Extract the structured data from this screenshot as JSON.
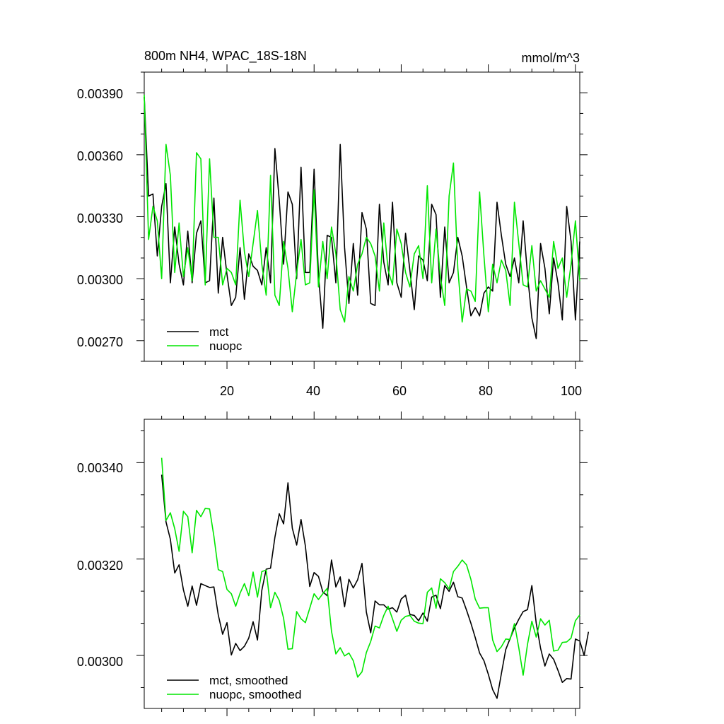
{
  "chart_data": [
    {
      "type": "line",
      "title": "800m NH4, WPAC_18S-18N",
      "units": "mmol/m^3",
      "xlabel": "",
      "ylabel": "",
      "xlim": [
        1,
        101
      ],
      "ylim": [
        0.0026,
        0.004
      ],
      "x_ticks": [
        20,
        40,
        60,
        80,
        100
      ],
      "x_tick_labels": [
        "20",
        "40",
        "60",
        "80",
        "100"
      ],
      "y_ticks": [
        0.0027,
        0.003,
        0.0033,
        0.0036,
        0.0039
      ],
      "y_tick_labels": [
        "0.00270",
        "0.00300",
        "0.00330",
        "0.00360",
        "0.00390"
      ],
      "legend_position": "bottom-left",
      "series": [
        {
          "name": "mct",
          "color": "#000000",
          "values": [
            0.00388,
            0.0034,
            0.00341,
            0.00311,
            0.00335,
            0.00346,
            0.00298,
            0.00325,
            0.00307,
            0.00297,
            0.00323,
            0.00298,
            0.00322,
            0.00328,
            0.00298,
            0.00299,
            0.00339,
            0.00293,
            0.0032,
            0.00302,
            0.00287,
            0.00291,
            0.00315,
            0.0029,
            0.00312,
            0.00306,
            0.00304,
            0.00297,
            0.00315,
            0.00298,
            0.00363,
            0.00338,
            0.00307,
            0.00342,
            0.00336,
            0.003,
            0.00354,
            0.00303,
            0.00303,
            0.00353,
            0.00302,
            0.00276,
            0.00321,
            0.0032,
            0.00298,
            0.00365,
            0.00315,
            0.00288,
            0.00317,
            0.00292,
            0.00332,
            0.00324,
            0.00288,
            0.00287,
            0.00336,
            0.00308,
            0.00297,
            0.00337,
            0.00298,
            0.00291,
            0.00322,
            0.00304,
            0.00285,
            0.00311,
            0.00309,
            0.00299,
            0.00336,
            0.00331,
            0.00291,
            0.00325,
            0.00298,
            0.00303,
            0.0032,
            0.00311,
            0.00296,
            0.00282,
            0.00286,
            0.00282,
            0.00293,
            0.00296,
            0.00294,
            0.00337,
            0.00321,
            0.00307,
            0.00301,
            0.0031,
            0.00298,
            0.00328,
            0.00302,
            0.00281,
            0.00271,
            0.00317,
            0.00305,
            0.00283,
            0.0031,
            0.00298,
            0.0028,
            0.00335,
            0.00318,
            0.0028,
            0.00318
          ]
        },
        {
          "name": "nuopc",
          "color": "#00e600",
          "values": [
            0.00389,
            0.00319,
            0.00335,
            0.00328,
            0.003,
            0.00365,
            0.0035,
            0.00303,
            0.00327,
            0.00301,
            0.00315,
            0.00299,
            0.00361,
            0.00358,
            0.00297,
            0.00358,
            0.0032,
            0.0032,
            0.00297,
            0.00305,
            0.00303,
            0.00297,
            0.00338,
            0.00313,
            0.00301,
            0.00317,
            0.00333,
            0.00307,
            0.00292,
            0.0035,
            0.00292,
            0.00287,
            0.00318,
            0.00305,
            0.00284,
            0.00303,
            0.00319,
            0.00297,
            0.00298,
            0.00343,
            0.00296,
            0.00318,
            0.003,
            0.00325,
            0.00312,
            0.00285,
            0.00279,
            0.00301,
            0.00294,
            0.00307,
            0.00312,
            0.0032,
            0.00317,
            0.00311,
            0.00294,
            0.00327,
            0.00304,
            0.00297,
            0.00324,
            0.00317,
            0.00303,
            0.00296,
            0.00312,
            0.00316,
            0.003,
            0.00345,
            0.00298,
            0.00324,
            0.00301,
            0.00287,
            0.0034,
            0.00356,
            0.00305,
            0.00279,
            0.00295,
            0.00294,
            0.00289,
            0.00342,
            0.00311,
            0.00284,
            0.00307,
            0.00298,
            0.00309,
            0.00304,
            0.00287,
            0.00337,
            0.00317,
            0.00297,
            0.00296,
            0.00316,
            0.00294,
            0.00299,
            0.00295,
            0.00291,
            0.00318,
            0.00305,
            0.0031,
            0.00291,
            0.00307,
            0.00328,
            0.00299
          ]
        }
      ]
    },
    {
      "type": "line",
      "title": "",
      "xlabel": "",
      "ylabel": "",
      "xlim": [
        1,
        101
      ],
      "ylim": [
        0.00289,
        0.00349
      ],
      "x_ticks": [
        20,
        40,
        60,
        80,
        100
      ],
      "y_ticks": [
        0.003,
        0.0032,
        0.0034
      ],
      "y_tick_labels": [
        "0.00300",
        "0.00320",
        "0.00340"
      ],
      "legend_position": "bottom-left",
      "series": [
        {
          "name": "mct, smoothed",
          "color": "#000000",
          "x_start": 5,
          "values": [
            0.003375,
            0.003277,
            0.003241,
            0.003171,
            0.003188,
            0.003136,
            0.003102,
            0.003144,
            0.003104,
            0.003149,
            0.003145,
            0.003141,
            0.003142,
            0.003084,
            0.003044,
            0.003068,
            0.003001,
            0.003025,
            0.00301,
            0.003019,
            0.003036,
            0.00307,
            0.003032,
            0.003135,
            0.003179,
            0.003181,
            0.003245,
            0.003294,
            0.003273,
            0.003358,
            0.003264,
            0.003229,
            0.003282,
            0.003227,
            0.003143,
            0.003172,
            0.003164,
            0.003132,
            0.003124,
            0.003198,
            0.003142,
            0.003163,
            0.003101,
            0.003158,
            0.00314,
            0.003157,
            0.003191,
            0.00309,
            0.003047,
            0.003113,
            0.003105,
            0.003105,
            0.003096,
            0.003099,
            0.00309,
            0.003117,
            0.003125,
            0.003085,
            0.003083,
            0.003072,
            0.003088,
            0.003071,
            0.003121,
            0.003125,
            0.003097,
            0.003145,
            0.003133,
            0.003152,
            0.003122,
            0.003119,
            0.003094,
            0.003067,
            0.003037,
            0.003005,
            0.002989,
            0.002961,
            0.002929,
            0.002911,
            0.002962,
            0.003012,
            0.003035,
            0.003057,
            0.003075,
            0.003091,
            0.003095,
            0.003145,
            0.003067,
            0.003015,
            0.002978,
            0.003003,
            0.002992,
            0.002969,
            0.002944,
            0.002952,
            0.002951,
            0.003034,
            0.00303,
            0.003,
            0.003049
          ]
        },
        {
          "name": "nuopc, smoothed",
          "color": "#00e600",
          "x_start": 5,
          "values": [
            0.00341,
            0.00328,
            0.003296,
            0.003263,
            0.003216,
            0.003299,
            0.003288,
            0.003213,
            0.003301,
            0.003288,
            0.003305,
            0.003304,
            0.003247,
            0.003178,
            0.003174,
            0.003137,
            0.003128,
            0.003102,
            0.003129,
            0.003149,
            0.003124,
            0.003173,
            0.003121,
            0.003174,
            0.003177,
            0.003099,
            0.003131,
            0.003114,
            0.003077,
            0.003013,
            0.003014,
            0.003091,
            0.003076,
            0.003068,
            0.003098,
            0.003128,
            0.003116,
            0.003128,
            0.003139,
            0.00305,
            0.003003,
            0.003016,
            0.002999,
            0.003005,
            0.002989,
            0.002955,
            0.002966,
            0.003006,
            0.003029,
            0.003061,
            0.003057,
            0.003083,
            0.003102,
            0.003076,
            0.00305,
            0.003073,
            0.003081,
            0.003083,
            0.003071,
            0.003067,
            0.003066,
            0.003131,
            0.00314,
            0.003098,
            0.003159,
            0.003151,
            0.003138,
            0.003174,
            0.003185,
            0.003198,
            0.003188,
            0.003158,
            0.003117,
            0.003098,
            0.003099,
            0.003099,
            0.003032,
            0.003008,
            0.003018,
            0.003034,
            0.003033,
            0.003066,
            0.003016,
            0.002959,
            0.003023,
            0.003071,
            0.003038,
            0.003076,
            0.003063,
            0.003073,
            0.003009,
            0.003011,
            0.003027,
            0.003028,
            0.003036,
            0.003072,
            0.003084
          ]
        }
      ]
    }
  ]
}
